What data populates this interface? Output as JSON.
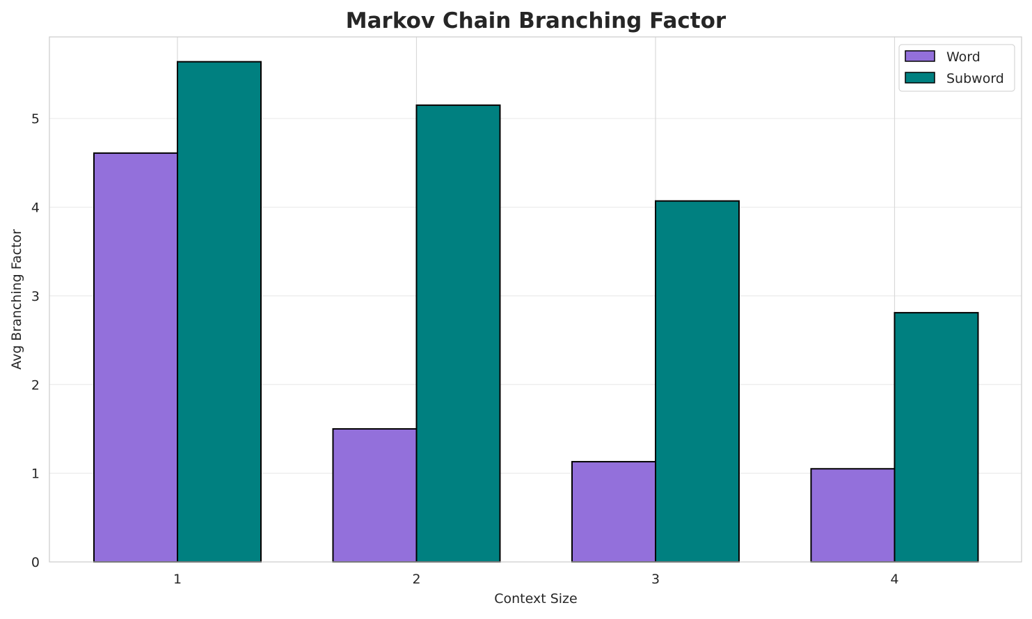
{
  "chart_data": {
    "type": "bar",
    "title": "Markov Chain Branching Factor",
    "xlabel": "Context Size",
    "ylabel": "Avg Branching Factor",
    "categories": [
      "1",
      "2",
      "3",
      "4"
    ],
    "series": [
      {
        "name": "Word",
        "values": [
          4.61,
          1.5,
          1.13,
          1.05
        ],
        "color": "#9370db"
      },
      {
        "name": "Subword",
        "values": [
          5.64,
          5.15,
          4.07,
          2.81
        ],
        "color": "#008080"
      }
    ],
    "yticks": [
      "0",
      "1",
      "2",
      "3",
      "4",
      "5"
    ],
    "ylim": [
      0,
      5.92
    ],
    "grid": true,
    "legend": "top-right"
  }
}
